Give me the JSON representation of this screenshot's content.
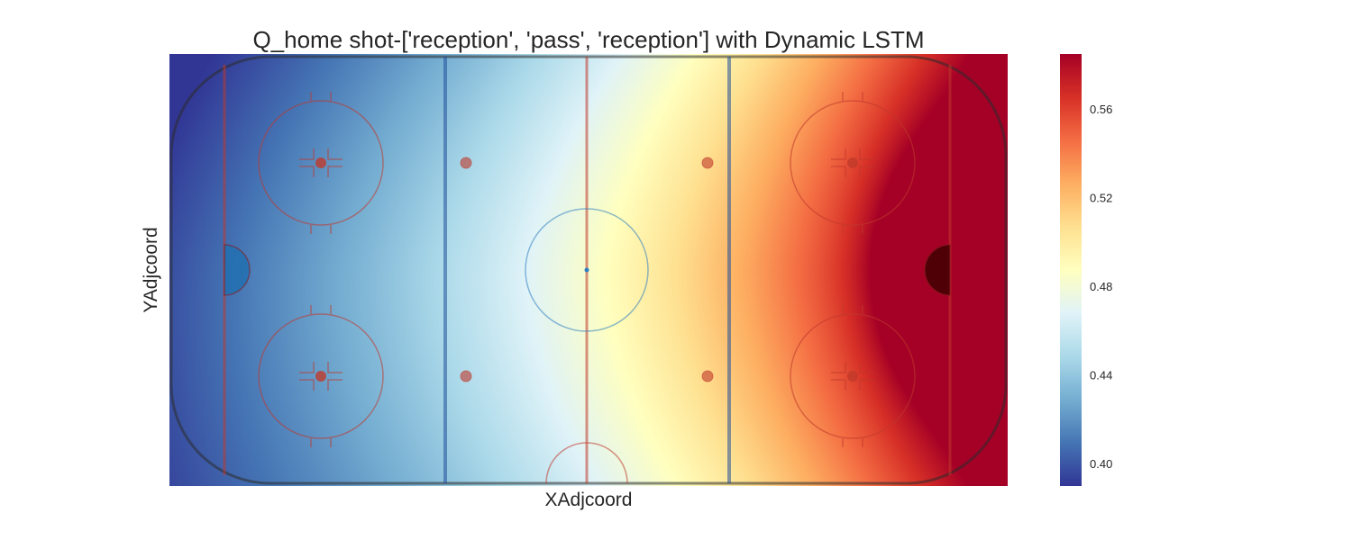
{
  "chart_data": {
    "type": "heatmap",
    "title": "Q_home shot-['reception', 'pass', 'reception'] with Dynamic LSTM",
    "xlabel": "XAdjcoord",
    "ylabel": "YAdjcoord",
    "grid": false,
    "background": "hockey rink",
    "colormap": "RdYlBu_r",
    "value_range": [
      0.39,
      0.585
    ],
    "colorbar": {
      "ticks": [
        0.4,
        0.44,
        0.48,
        0.52,
        0.56
      ],
      "tick_labels": [
        "0.40",
        "0.44",
        "0.48",
        "0.52",
        "0.56"
      ]
    },
    "colors": {
      "colormap_stops": [
        "#313695",
        "#4575b4",
        "#74add1",
        "#abd9e9",
        "#e0f3f8",
        "#ffffbf",
        "#fee090",
        "#fdae61",
        "#f46d43",
        "#d73027",
        "#a50026"
      ]
    },
    "notes": "Low values (blue) at the defensive (left) end of the rink, high values (red) near the offensive (right) goal crease."
  }
}
